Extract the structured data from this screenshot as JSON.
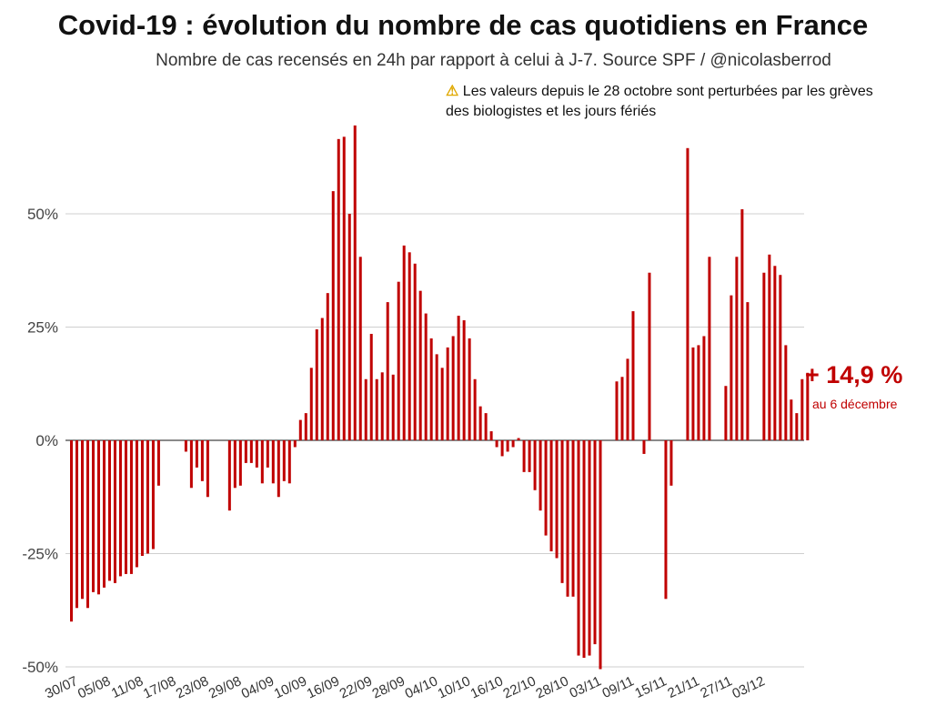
{
  "chart_data": {
    "type": "bar",
    "title": "Covid-19 : évolution du nombre de cas quotidiens en France",
    "subtitle": "Nombre de cas recensés en 24h par rapport à celui à J-7. Source SPF / @nicolasberrod",
    "warning_icon": "warning-icon",
    "warning_text": "Les valeurs depuis le 28 octobre sont perturbées par les grèves des biologistes et les jours fériés",
    "annotation_value": "+ 14,9 %",
    "annotation_label": "au 6 décembre",
    "xlabel": "",
    "ylabel": "",
    "ylim": [
      -50,
      70
    ],
    "yticks": [
      -50,
      -25,
      0,
      25,
      50
    ],
    "ytick_labels": [
      "-50%",
      "-25%",
      "0%",
      "25%",
      "50%"
    ],
    "x_ticks": [
      "30/07",
      "05/08",
      "11/08",
      "17/08",
      "23/08",
      "29/08",
      "04/09",
      "10/09",
      "16/09",
      "22/09",
      "28/09",
      "04/10",
      "10/10",
      "16/10",
      "22/10",
      "28/10",
      "03/11",
      "09/11",
      "15/11",
      "21/11",
      "27/11",
      "03/12"
    ],
    "bar_color": "#c00000",
    "values": [
      -40,
      -37,
      -35,
      -37,
      -33.5,
      -34,
      -32.5,
      -31,
      -31.5,
      -30,
      -29.5,
      -29.5,
      -28,
      -25.5,
      -25,
      -24,
      -10,
      null,
      null,
      null,
      null,
      -2.5,
      -10.5,
      -6,
      -9,
      -12.5,
      null,
      null,
      null,
      -15.5,
      -10.5,
      -10,
      -5,
      -5,
      -6,
      -9.5,
      -6,
      -9.5,
      -12.5,
      -9,
      -9.5,
      -1.5,
      4.5,
      6,
      16,
      24.5,
      27,
      32.5,
      55,
      66.5,
      67,
      50,
      69.5,
      40.5,
      13.5,
      23.5,
      13.5,
      15,
      30.5,
      14.5,
      35,
      43,
      41.5,
      39,
      33,
      28,
      22.5,
      19,
      16,
      20.5,
      23,
      27.5,
      26.5,
      22.5,
      13.5,
      7.5,
      6,
      2,
      -1.5,
      -3.5,
      -2.5,
      -1.5,
      0.5,
      -7,
      -7,
      -11,
      -15.5,
      -21,
      -24.5,
      -26,
      -31.5,
      -34.5,
      -34.5,
      -47.5,
      -48,
      -47.5,
      -45,
      -50.5,
      null,
      null,
      13,
      14,
      18,
      28.5,
      null,
      -3,
      37,
      null,
      null,
      -35,
      -10,
      null,
      null,
      64.5,
      20.5,
      21,
      23,
      40.5,
      null,
      null,
      12,
      32,
      40.5,
      51,
      30.5,
      null,
      null,
      37,
      41,
      38.5,
      36.5,
      21,
      9,
      6,
      13.5,
      14.9
    ]
  }
}
